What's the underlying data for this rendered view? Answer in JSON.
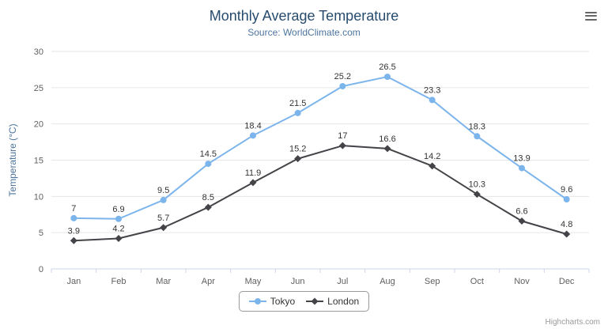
{
  "header": {
    "title": "Monthly Average Temperature",
    "subtitle": "Source: WorldClimate.com"
  },
  "credits": "Highcharts.com",
  "colors": {
    "title": "#274b6d",
    "subtitle": "#4d759e",
    "grid": "#e6e6e6",
    "axis_line": "#ccd6eb",
    "axis_text": "#606060",
    "data_label": "#333333"
  },
  "chart_data": {
    "type": "line",
    "title": "Monthly Average Temperature",
    "subtitle": "Source: WorldClimate.com",
    "xlabel": "",
    "ylabel": "Temperature (°C)",
    "ylim": [
      0,
      30
    ],
    "ytick_step": 5,
    "grid": true,
    "legend_position": "bottom",
    "categories": [
      "Jan",
      "Feb",
      "Mar",
      "Apr",
      "May",
      "Jun",
      "Jul",
      "Aug",
      "Sep",
      "Oct",
      "Nov",
      "Dec"
    ],
    "series": [
      {
        "name": "Tokyo",
        "color": "#7cb5ec",
        "marker": "circle",
        "values": [
          7,
          6.9,
          9.5,
          14.5,
          18.4,
          21.5,
          25.2,
          26.5,
          23.3,
          18.3,
          13.9,
          9.6
        ]
      },
      {
        "name": "London",
        "color": "#434348",
        "marker": "diamond",
        "values": [
          3.9,
          4.2,
          5.7,
          8.5,
          11.9,
          15.2,
          17,
          16.6,
          14.2,
          10.3,
          6.6,
          4.8
        ]
      }
    ]
  }
}
